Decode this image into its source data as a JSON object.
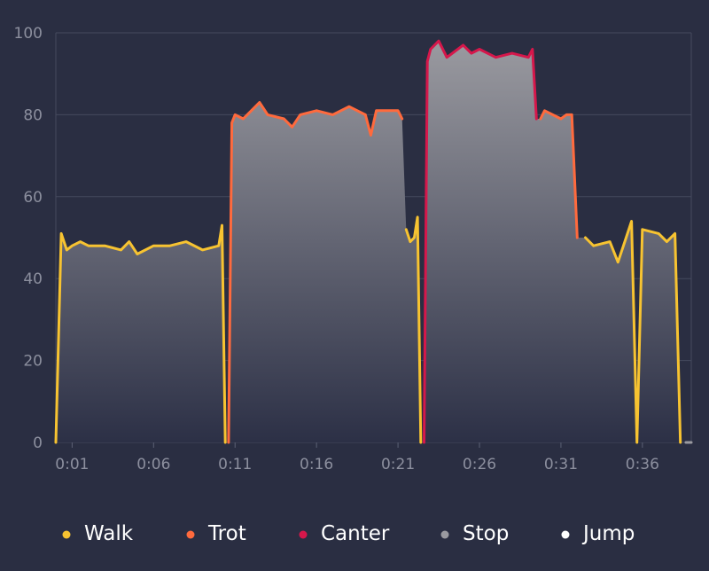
{
  "chart_data": {
    "type": "area",
    "title": "",
    "xlabel": "",
    "ylabel": "",
    "ylim": [
      0,
      100
    ],
    "xlim": [
      "0:00",
      "0:39"
    ],
    "grid": true,
    "legend_position": "bottom",
    "yticks": [
      0,
      20,
      40,
      60,
      80,
      100
    ],
    "xticks": [
      "0:01",
      "0:06",
      "0:11",
      "0:16",
      "0:21",
      "0:26",
      "0:31",
      "0:36"
    ],
    "area_fill": {
      "top": "#9a9aa0",
      "bottom": "#2c3046"
    },
    "series": [
      {
        "name": "Walk",
        "color": "#f7c331"
      },
      {
        "name": "Trot",
        "color": "#ff6a3d"
      },
      {
        "name": "Canter",
        "color": "#d6174b"
      },
      {
        "name": "Stop",
        "color": "#9a9aa0"
      },
      {
        "name": "Jump",
        "color": "#ffffff"
      }
    ],
    "segments": [
      {
        "series": "Walk",
        "points": [
          [
            "0:00",
            0
          ],
          [
            "0:00",
            51
          ],
          [
            "0:00",
            47
          ],
          [
            "0:01",
            48
          ],
          [
            "0:01",
            49
          ],
          [
            "0:02",
            48
          ],
          [
            "0:03",
            48
          ],
          [
            "0:04",
            47
          ],
          [
            "0:04",
            49
          ],
          [
            "0:05",
            46
          ],
          [
            "0:06",
            48
          ],
          [
            "0:07",
            48
          ],
          [
            "0:08",
            49
          ],
          [
            "0:09",
            47
          ],
          [
            "0:10",
            48
          ],
          [
            "0:10",
            53
          ],
          [
            "0:10",
            0
          ]
        ]
      },
      {
        "series": "Trot",
        "points": [
          [
            "0:10",
            0
          ],
          [
            "0:10",
            78
          ],
          [
            "0:11",
            80
          ],
          [
            "0:11",
            79
          ],
          [
            "0:12",
            81
          ],
          [
            "0:12",
            83
          ],
          [
            "0:13",
            80
          ],
          [
            "0:14",
            79
          ],
          [
            "0:14",
            77
          ],
          [
            "0:15",
            80
          ],
          [
            "0:16",
            81
          ],
          [
            "0:17",
            80
          ],
          [
            "0:18",
            82
          ],
          [
            "0:19",
            80
          ],
          [
            "0:19",
            75
          ],
          [
            "0:19",
            81
          ],
          [
            "0:20",
            81
          ],
          [
            "0:21",
            81
          ],
          [
            "0:21",
            79
          ]
        ]
      },
      {
        "series": "Walk",
        "points": [
          [
            "0:21",
            52
          ],
          [
            "0:21",
            49
          ],
          [
            "0:22",
            50
          ],
          [
            "0:22",
            55
          ],
          [
            "0:22",
            0
          ]
        ]
      },
      {
        "series": "Canter",
        "points": [
          [
            "0:22",
            0
          ],
          [
            "0:22",
            93
          ],
          [
            "0:23",
            96
          ],
          [
            "0:23",
            98
          ],
          [
            "0:24",
            94
          ],
          [
            "0:25",
            97
          ],
          [
            "0:25",
            95
          ],
          [
            "0:26",
            96
          ],
          [
            "0:27",
            94
          ],
          [
            "0:28",
            95
          ],
          [
            "0:29",
            94
          ],
          [
            "0:29",
            96
          ],
          [
            "0:29",
            79
          ]
        ]
      },
      {
        "series": "Trot",
        "points": [
          [
            "0:29",
            79
          ],
          [
            "0:30",
            81
          ],
          [
            "0:31",
            79
          ],
          [
            "0:31",
            80
          ],
          [
            "0:31",
            80
          ],
          [
            "0:32",
            50
          ]
        ]
      },
      {
        "series": "Walk",
        "points": [
          [
            "0:32",
            50
          ],
          [
            "0:33",
            48
          ],
          [
            "0:34",
            49
          ],
          [
            "0:34",
            44
          ],
          [
            "0:35",
            50
          ],
          [
            "0:35",
            54
          ],
          [
            "0:35",
            0
          ],
          [
            "0:36",
            52
          ],
          [
            "0:37",
            51
          ],
          [
            "0:37",
            49
          ],
          [
            "0:38",
            51
          ],
          [
            "0:38",
            0
          ]
        ]
      },
      {
        "series": "Stop",
        "points": [
          [
            "0:38",
            0
          ],
          [
            "0:39",
            0
          ]
        ]
      }
    ]
  }
}
